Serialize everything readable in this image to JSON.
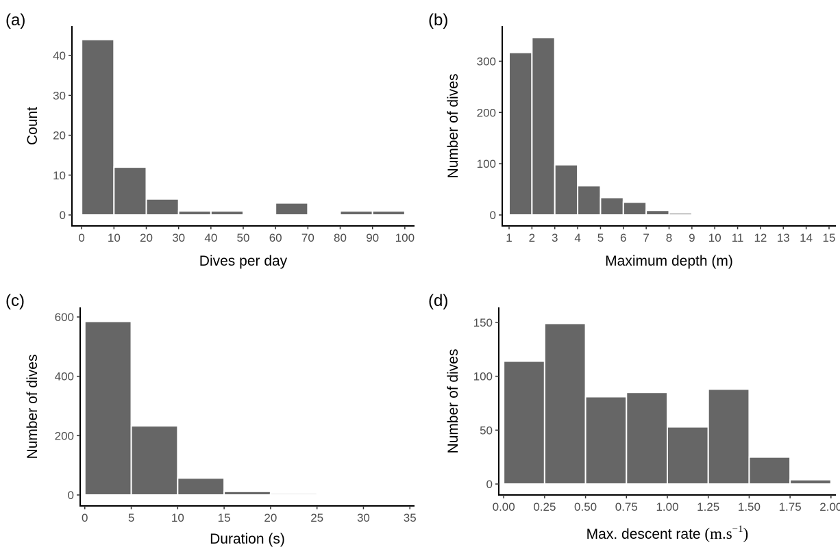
{
  "chart_data": [
    {
      "type": "bar",
      "panel_label": "(a)",
      "xlabel": "Dives per day",
      "ylabel": "Count",
      "xlim": [
        -3,
        103
      ],
      "ylim": [
        0,
        45
      ],
      "x_ticks": [
        0,
        10,
        20,
        30,
        40,
        50,
        60,
        70,
        80,
        90,
        100
      ],
      "y_ticks": [
        0,
        10,
        20,
        30,
        40
      ],
      "bin_edges": [
        0,
        10,
        20,
        30,
        40,
        50,
        60,
        70,
        80,
        90,
        100
      ],
      "values": [
        44,
        12,
        4,
        1,
        1,
        0,
        3,
        0,
        1,
        1
      ],
      "bar_color": "#666666"
    },
    {
      "type": "bar",
      "panel_label": "(b)",
      "xlabel": "Maximum depth (m)",
      "ylabel": "Number of dives",
      "xlim": [
        0.7,
        15.3
      ],
      "ylim": [
        0,
        350
      ],
      "x_ticks": [
        1,
        2,
        3,
        4,
        5,
        6,
        7,
        8,
        9,
        10,
        11,
        12,
        13,
        14,
        15
      ],
      "y_ticks": [
        0,
        100,
        200,
        300
      ],
      "bin_edges": [
        1,
        2,
        3,
        4,
        5,
        6,
        7,
        8,
        9,
        10,
        11,
        12,
        13,
        14,
        15
      ],
      "values": [
        317,
        346,
        98,
        57,
        34,
        25,
        9,
        4,
        0,
        1,
        1,
        1,
        0,
        1
      ],
      "bar_color": "#666666"
    },
    {
      "type": "bar",
      "panel_label": "(c)",
      "xlabel": "Duration (s)",
      "ylabel": "Number of dives",
      "xlim": [
        -0.5,
        35.5
      ],
      "ylim": [
        0,
        600
      ],
      "x_ticks": [
        0,
        5,
        10,
        15,
        20,
        25,
        30,
        35
      ],
      "y_ticks": [
        0,
        200,
        400,
        600
      ],
      "bin_edges": [
        0,
        5,
        10,
        15,
        20,
        25,
        30,
        35
      ],
      "values": [
        585,
        233,
        57,
        12,
        5,
        0,
        1
      ],
      "bar_color": "#666666"
    },
    {
      "type": "bar",
      "panel_label": "(d)",
      "xlabel_main": "Max. descent rate ",
      "xlabel_unit_base": "(m.s",
      "xlabel_unit_sup": "−1",
      "xlabel_unit_close": ")",
      "ylabel": "Number of dives",
      "xlim": [
        -0.03,
        2.03
      ],
      "ylim": [
        0,
        155
      ],
      "x_ticks": [
        0.0,
        0.25,
        0.5,
        0.75,
        1.0,
        1.25,
        1.5,
        1.75,
        2.0
      ],
      "x_tick_labels": [
        "0.00",
        "0.25",
        "0.50",
        "0.75",
        "1.00",
        "1.25",
        "1.50",
        "1.75",
        "2.00"
      ],
      "y_ticks": [
        0,
        50,
        100,
        150
      ],
      "bin_edges": [
        0,
        0.25,
        0.5,
        0.75,
        1.0,
        1.25,
        1.5,
        1.75,
        2.0
      ],
      "values": [
        114,
        149,
        81,
        85,
        53,
        88,
        25,
        4
      ],
      "bar_color": "#666666"
    }
  ]
}
